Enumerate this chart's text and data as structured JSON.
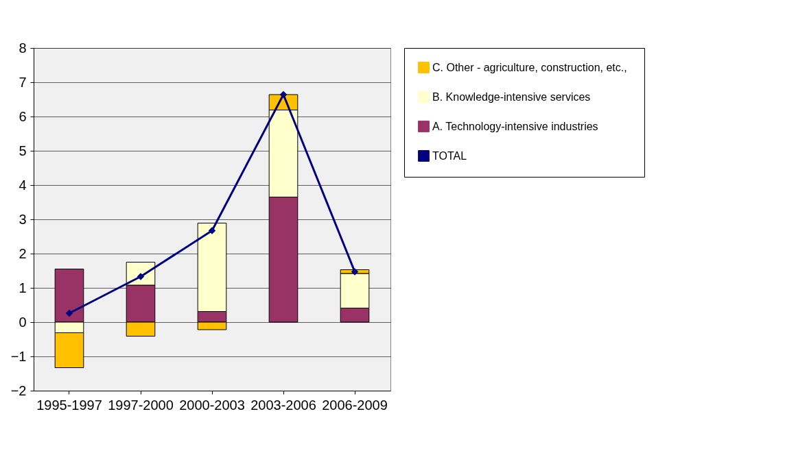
{
  "chart_data": {
    "type": "bar",
    "stacked": true,
    "categories": [
      "1995-1997",
      "1997-2000",
      "2000-2003",
      "2003-2006",
      "2006-2009"
    ],
    "series": [
      {
        "name": "A. Technology-intensive industries",
        "color": "#993366",
        "values": [
          1.55,
          1.08,
          0.31,
          3.65,
          0.41
        ]
      },
      {
        "name": "B. Knowledge-intensive services",
        "color": "#ffffcc",
        "values": [
          -0.31,
          0.67,
          2.58,
          2.54,
          1.01
        ]
      },
      {
        "name": "C. Other - agriculture, construction,  etc.,",
        "color": "#ffc000",
        "values": [
          -1.02,
          -0.41,
          -0.22,
          0.45,
          0.11
        ]
      },
      {
        "name": "TOTAL",
        "type": "line",
        "color": "#000080",
        "marker": "diamond",
        "values": [
          0.26,
          1.33,
          2.67,
          6.64,
          1.47
        ]
      }
    ],
    "ylim": [
      -2,
      8
    ],
    "yticks": [
      -2,
      -1,
      0,
      1,
      2,
      3,
      4,
      5,
      6,
      7,
      8
    ],
    "grid": "y",
    "legend": "right"
  }
}
